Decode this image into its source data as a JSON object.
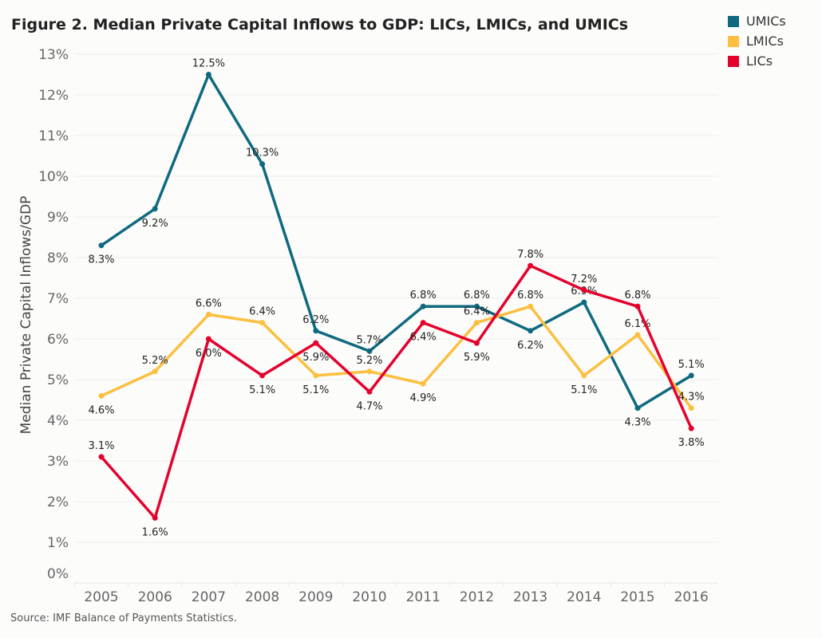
{
  "chart_data": {
    "type": "line",
    "title": "Figure 2. Median Private Capital Inflows to GDP: LICs, LMICs, and UMICs",
    "ylabel": "Median Private Capital Inflows/GDP",
    "xlabel": "",
    "source": "Source: IMF Balance of Payments Statistics.",
    "x": [
      "2005",
      "2006",
      "2007",
      "2008",
      "2009",
      "2010",
      "2011",
      "2012",
      "2013",
      "2014",
      "2015",
      "2016"
    ],
    "yticks": [
      "0%",
      "1%",
      "2%",
      "3%",
      "4%",
      "5%",
      "6%",
      "7%",
      "8%",
      "9%",
      "10%",
      "11%",
      "12%",
      "13%"
    ],
    "ylim": [
      0,
      13
    ],
    "grid": true,
    "legend_position": "top-right",
    "series": [
      {
        "name": "UMICs",
        "color": "#0f6a7f",
        "values": [
          8.3,
          9.2,
          12.5,
          10.3,
          6.2,
          5.7,
          6.8,
          6.8,
          6.2,
          6.9,
          4.3,
          5.1
        ]
      },
      {
        "name": "LMICs",
        "color": "#fcbf3f",
        "values": [
          4.6,
          5.2,
          6.6,
          6.4,
          5.1,
          5.2,
          4.9,
          6.4,
          6.8,
          5.1,
          6.1,
          4.3
        ]
      },
      {
        "name": "LICs",
        "color": "#e3022c",
        "values": [
          3.1,
          1.6,
          6.0,
          5.1,
          5.9,
          4.7,
          6.4,
          5.9,
          7.8,
          7.2,
          6.8,
          3.8
        ]
      }
    ]
  }
}
